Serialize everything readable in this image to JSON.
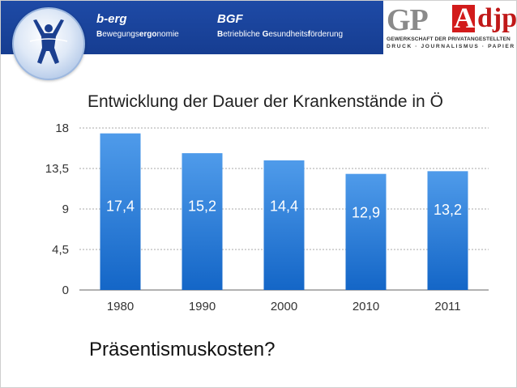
{
  "header": {
    "brand1": {
      "title": "b-erg",
      "subtitle_parts": [
        "B",
        "ewegungs",
        "ergo",
        "nomie"
      ]
    },
    "brand2": {
      "title": "BGF",
      "subtitle_parts": [
        "B",
        "etriebliche ",
        "G",
        "esundheits",
        "f",
        "örderung"
      ]
    },
    "partner_logo": {
      "mark1": "GP",
      "mark2": "A",
      "mark3": "djp",
      "line1": "GEWERKSCHAFT DER PRIVATANGESTELLTEN",
      "line2": "DRUCK · JOURNALISMUS · PAPIER",
      "colors": {
        "gray": "#8a8a8a",
        "red": "#d21b1b"
      }
    },
    "banner_color": "#1e4aa6"
  },
  "question": "Präsentismuskosten?",
  "chart_data": {
    "type": "bar",
    "title": "Entwicklung der Dauer der Krankenstände in Ö",
    "categories": [
      "1980",
      "1990",
      "2000",
      "2010",
      "2011"
    ],
    "values": [
      17.4,
      15.2,
      14.4,
      12.9,
      13.2
    ],
    "value_labels": [
      "17,4",
      "15,2",
      "14,4",
      "12,9",
      "13,2"
    ],
    "ylim": [
      0,
      18
    ],
    "yticks": [
      0,
      4.5,
      9,
      13.5,
      18
    ],
    "ytick_labels": [
      "0",
      "4,5",
      "9",
      "13,5",
      "18"
    ],
    "grid": true,
    "bar_color_top": "#4f9bea",
    "bar_color_bottom": "#1466c7"
  }
}
